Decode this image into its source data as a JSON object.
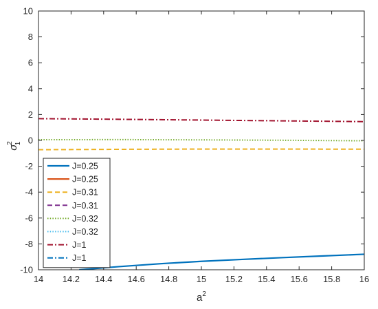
{
  "chart_data": {
    "type": "line",
    "xlabel": "a",
    "xlabel_sup": "2",
    "ylabel": "σ",
    "ylabel_sub": "1",
    "ylabel_sup": "2",
    "xlim": [
      14,
      16
    ],
    "ylim": [
      -10,
      10
    ],
    "xticks": [
      14,
      14.2,
      14.4,
      14.6,
      14.8,
      15,
      15.2,
      15.4,
      15.6,
      15.8,
      16
    ],
    "xtick_labels": [
      "14",
      "14.2",
      "14.4",
      "14.6",
      "14.8",
      "15",
      "15.2",
      "15.4",
      "15.6",
      "15.8",
      "16"
    ],
    "yticks": [
      -10,
      -8,
      -6,
      -4,
      -2,
      0,
      2,
      4,
      6,
      8,
      10
    ],
    "ytick_labels": [
      "-10",
      "-8",
      "-6",
      "-4",
      "-2",
      "0",
      "2",
      "4",
      "6",
      "8",
      "10"
    ],
    "grid": false,
    "legend_position": "bottom-left",
    "series": [
      {
        "name": "J=0.25",
        "color": "#0072BD",
        "dash": "solid",
        "x": [
          14.25,
          14.5,
          14.75,
          15,
          15.25,
          15.5,
          15.75,
          16
        ],
        "y": [
          -10,
          -9.75,
          -9.53,
          -9.35,
          -9.2,
          -9.06,
          -8.93,
          -8.8
        ]
      },
      {
        "name": "J=0.25",
        "color": "#D95319",
        "dash": "solid",
        "x": [],
        "y": []
      },
      {
        "name": "J=0.31",
        "color": "#EDB120",
        "dash": "dashed",
        "x": [
          14,
          14.5,
          15,
          15.5,
          16
        ],
        "y": [
          -0.72,
          -0.69,
          -0.67,
          -0.67,
          -0.68
        ]
      },
      {
        "name": "J=0.31",
        "color": "#7E2F8E",
        "dash": "dashed",
        "x": [],
        "y": []
      },
      {
        "name": "J=0.32",
        "color": "#77AC30",
        "dash": "dotted",
        "x": [
          14,
          14.5,
          15,
          15.5,
          16
        ],
        "y": [
          0.05,
          0.06,
          0.04,
          0.01,
          -0.03
        ]
      },
      {
        "name": "J=0.32",
        "color": "#4DBEEE",
        "dash": "dotted",
        "x": [],
        "y": []
      },
      {
        "name": "J=1",
        "color": "#A2142F",
        "dash": "dashdot",
        "x": [
          14,
          14.5,
          15,
          15.5,
          16
        ],
        "y": [
          1.68,
          1.63,
          1.57,
          1.51,
          1.45
        ]
      },
      {
        "name": "J=1",
        "color": "#0072BD",
        "dash": "dashdot",
        "x": [],
        "y": []
      }
    ]
  }
}
